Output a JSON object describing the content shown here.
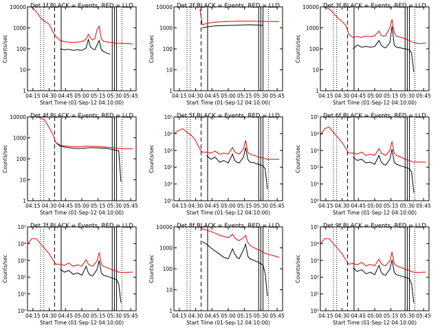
{
  "colors": {
    "events": "#000000",
    "lld": "#e00000",
    "frame": "#000000"
  },
  "shared": {
    "xlabel": "Start Time (01-Sep-12 04:10:00)",
    "ylabel": "Counts/sec",
    "x_ticks": [
      "04:15",
      "04:30",
      "04:45",
      "05:00",
      "05:15",
      "05:30",
      "05:45"
    ],
    "x_tick_minutes": [
      5,
      20,
      35,
      50,
      65,
      80,
      95
    ],
    "xlim_minutes": [
      0,
      100
    ],
    "markers": [
      {
        "minute": 12,
        "style": "dotted"
      },
      {
        "minute": 15,
        "style": "dotted"
      },
      {
        "minute": 25,
        "style": "dashed"
      },
      {
        "minute": 31,
        "style": "solid"
      },
      {
        "minute": 78,
        "style": "solid"
      },
      {
        "minute": 80,
        "style": "solid"
      },
      {
        "minute": 82,
        "style": "solid"
      },
      {
        "minute": 87,
        "style": "dotted"
      }
    ]
  },
  "chart_data": [
    {
      "type": "line",
      "title": "Det 1f BLACK = Events, RED = LLD",
      "y_ticks": [
        "1",
        "10",
        "100",
        "1000",
        "10000"
      ],
      "ylim": [
        1,
        10000
      ],
      "x_minutes": [
        0,
        4,
        8,
        12,
        16,
        20,
        23,
        26,
        30,
        34,
        38,
        42,
        46,
        50,
        52,
        54,
        56,
        58,
        60,
        62,
        64,
        66,
        68,
        70,
        72,
        74,
        76,
        78,
        80,
        82,
        86,
        90,
        94,
        97
      ],
      "series": [
        {
          "name": "BLACK = Events",
          "values": [
            null,
            null,
            null,
            null,
            null,
            null,
            null,
            null,
            100,
            90,
            95,
            85,
            90,
            85,
            95,
            110,
            280,
            120,
            100,
            90,
            150,
            250,
            90,
            75,
            65,
            60,
            55,
            null,
            null,
            null,
            null,
            null,
            null,
            null
          ]
        },
        {
          "name": "RED = LLD",
          "values": [
            10000,
            10000,
            6000,
            3000,
            2000,
            1500,
            700,
            400,
            250,
            220,
            210,
            200,
            210,
            220,
            250,
            300,
            500,
            320,
            260,
            300,
            800,
            1200,
            300,
            230,
            220,
            210,
            200,
            200,
            190,
            180,
            185,
            180,
            175,
            170
          ]
        }
      ]
    },
    {
      "type": "line",
      "title": "Det 2f BLACK = Events, RED = LLD",
      "y_ticks": [
        "1",
        "10",
        "100",
        "1000",
        "10000"
      ],
      "ylim": [
        1,
        10000
      ],
      "x_minutes": [
        0,
        20,
        22,
        24,
        26,
        30,
        35,
        40,
        50,
        60,
        70,
        78,
        82,
        90,
        97
      ],
      "series": [
        {
          "name": "BLACK = Events",
          "values": [
            null,
            null,
            null,
            null,
            1000,
            1100,
            1200,
            1250,
            1300,
            1350,
            1400,
            1350,
            1300,
            null,
            null
          ]
        },
        {
          "name": "RED = LLD",
          "values": [
            null,
            null,
            null,
            8000,
            1400,
            1600,
            1800,
            1900,
            2000,
            2100,
            2100,
            2050,
            2000,
            2000,
            2000
          ]
        }
      ]
    },
    {
      "type": "line",
      "title": "Det 3f BLACK = Events, RED = LLD",
      "y_ticks": [
        "1",
        "10",
        "100",
        "1000",
        "10000"
      ],
      "ylim": [
        1,
        10000
      ],
      "x_minutes": [
        0,
        4,
        8,
        12,
        16,
        20,
        24,
        26,
        30,
        34,
        38,
        42,
        46,
        50,
        54,
        56,
        58,
        60,
        64,
        66,
        68,
        70,
        74,
        78,
        82,
        84,
        86,
        90,
        94,
        97
      ],
      "series": [
        {
          "name": "BLACK = Events",
          "values": [
            null,
            null,
            null,
            null,
            null,
            null,
            null,
            null,
            100,
            150,
            120,
            130,
            120,
            130,
            250,
            150,
            120,
            110,
            200,
            1200,
            150,
            120,
            110,
            100,
            90,
            60,
            8,
            null,
            null,
            null
          ]
        },
        {
          "name": "RED = LLD",
          "values": [
            10000,
            10000,
            8000,
            5000,
            3000,
            2000,
            1200,
            500,
            350,
            380,
            350,
            400,
            380,
            420,
            700,
            450,
            400,
            420,
            1000,
            2500,
            600,
            400,
            350,
            300,
            250,
            220,
            200,
            180,
            180,
            190
          ]
        }
      ]
    },
    {
      "type": "line",
      "title": "Det 4f BLACK = Events, RED = LLD",
      "y_ticks": [
        "1",
        "10",
        "100",
        "1000",
        "10000"
      ],
      "ylim": [
        1,
        10000
      ],
      "x_minutes": [
        0,
        4,
        8,
        12,
        16,
        20,
        22,
        24,
        26,
        30,
        36,
        42,
        48,
        54,
        60,
        66,
        72,
        78,
        82,
        84,
        86,
        90,
        97
      ],
      "series": [
        {
          "name": "BLACK = Events",
          "values": [
            null,
            null,
            null,
            null,
            null,
            null,
            null,
            null,
            600,
            400,
            350,
            320,
            310,
            330,
            340,
            330,
            320,
            280,
            250,
            250,
            8,
            null,
            null
          ]
        },
        {
          "name": "RED = LLD",
          "values": [
            10000,
            10000,
            10000,
            9000,
            7000,
            3000,
            2000,
            1200,
            600,
            450,
            400,
            380,
            380,
            400,
            400,
            380,
            360,
            340,
            320,
            320,
            310,
            300,
            300
          ]
        }
      ]
    },
    {
      "type": "line",
      "title": "Det 5f BLACK = Events, RED = LLD",
      "y_ticks": [
        "10⁰",
        "10¹",
        "10²",
        "10³",
        "10⁴",
        "10⁵"
      ],
      "ylim": [
        1,
        100000
      ],
      "x_minutes": [
        0,
        4,
        8,
        12,
        16,
        20,
        23,
        26,
        30,
        34,
        38,
        42,
        46,
        50,
        54,
        56,
        58,
        60,
        64,
        66,
        68,
        70,
        74,
        78,
        82,
        84,
        86,
        90,
        97
      ],
      "series": [
        {
          "name": "BLACK = Events",
          "values": [
            null,
            null,
            null,
            null,
            null,
            null,
            null,
            null,
            500,
            300,
            400,
            200,
            250,
            180,
            600,
            250,
            200,
            180,
            400,
            1500,
            300,
            200,
            180,
            150,
            120,
            80,
            5,
            null,
            null
          ]
        },
        {
          "name": "RED = LLD",
          "values": [
            10000,
            15000,
            20000,
            12000,
            8000,
            4000,
            1500,
            800,
            800,
            700,
            900,
            600,
            700,
            600,
            1500,
            800,
            700,
            600,
            1200,
            4000,
            800,
            600,
            500,
            400,
            350,
            320,
            300,
            300,
            300
          ]
        }
      ]
    },
    {
      "type": "line",
      "title": "Det 6f BLACK = Events, RED = LLD",
      "y_ticks": [
        "10⁰",
        "10¹",
        "10²",
        "10³",
        "10⁴",
        "10⁵"
      ],
      "ylim": [
        1,
        100000
      ],
      "x_minutes": [
        0,
        4,
        8,
        12,
        16,
        20,
        23,
        26,
        30,
        34,
        38,
        42,
        46,
        50,
        54,
        56,
        58,
        60,
        64,
        66,
        68,
        70,
        74,
        78,
        82,
        84,
        86,
        90,
        97
      ],
      "series": [
        {
          "name": "BLACK = Events",
          "values": [
            null,
            null,
            null,
            null,
            null,
            null,
            null,
            null,
            400,
            250,
            300,
            180,
            200,
            150,
            500,
            200,
            150,
            130,
            300,
            1200,
            200,
            150,
            120,
            100,
            80,
            50,
            3,
            null,
            null
          ]
        },
        {
          "name": "RED = LLD",
          "values": [
            8000,
            20000,
            25000,
            12000,
            6000,
            3000,
            1500,
            700,
            700,
            600,
            800,
            500,
            600,
            500,
            1300,
            700,
            600,
            500,
            1000,
            3500,
            700,
            500,
            400,
            300,
            250,
            220,
            200,
            200,
            200
          ]
        }
      ]
    },
    {
      "type": "line",
      "title": "Det 7f BLACK = Events, RED = LLD",
      "y_ticks": [
        "10⁰",
        "10¹",
        "10²",
        "10³",
        "10⁴",
        "10⁵"
      ],
      "ylim": [
        1,
        100000
      ],
      "x_minutes": [
        0,
        4,
        8,
        12,
        16,
        20,
        23,
        26,
        30,
        34,
        38,
        42,
        46,
        50,
        54,
        56,
        58,
        60,
        64,
        66,
        68,
        70,
        74,
        78,
        82,
        84,
        86,
        90,
        97
      ],
      "series": [
        {
          "name": "BLACK = Events",
          "values": [
            null,
            null,
            null,
            null,
            null,
            null,
            null,
            null,
            300,
            200,
            250,
            150,
            180,
            130,
            450,
            180,
            130,
            120,
            280,
            1000,
            180,
            130,
            110,
            90,
            70,
            40,
            3,
            null,
            null
          ]
        },
        {
          "name": "RED = LLD",
          "values": [
            10000,
            20000,
            20000,
            10000,
            5000,
            2500,
            1200,
            600,
            600,
            500,
            700,
            450,
            550,
            450,
            1100,
            600,
            500,
            450,
            900,
            3000,
            600,
            450,
            350,
            280,
            230,
            200,
            190,
            190,
            200
          ]
        }
      ]
    },
    {
      "type": "line",
      "title": "Det 8f BLACK = Events, RED = LLD",
      "y_ticks": [
        "1",
        "10",
        "100",
        "1000",
        "10000"
      ],
      "ylim": [
        1,
        10000
      ],
      "x_minutes": [
        0,
        20,
        24,
        26,
        30,
        34,
        38,
        42,
        46,
        50,
        54,
        56,
        58,
        60,
        64,
        66,
        68,
        70,
        74,
        78,
        82,
        84,
        86,
        90,
        97
      ],
      "series": [
        {
          "name": "BLACK = Events",
          "values": [
            null,
            null,
            null,
            2000,
            1500,
            1000,
            700,
            500,
            350,
            300,
            900,
            500,
            350,
            300,
            800,
            1500,
            400,
            300,
            250,
            200,
            150,
            60,
            5,
            null,
            null
          ]
        },
        {
          "name": "RED = LLD",
          "values": [
            null,
            null,
            10000,
            8000,
            7000,
            6000,
            5000,
            4000,
            3500,
            3000,
            4500,
            3000,
            2500,
            2200,
            3000,
            4000,
            1800,
            1300,
            1000,
            800,
            650,
            550,
            500,
            450,
            350
          ]
        }
      ]
    },
    {
      "type": "line",
      "title": "Det 9f BLACK = Events, RED = LLD",
      "y_ticks": [
        "10⁰",
        "10¹",
        "10²",
        "10³",
        "10⁴",
        "10⁵"
      ],
      "ylim": [
        1,
        100000
      ],
      "x_minutes": [
        0,
        4,
        8,
        12,
        16,
        20,
        23,
        26,
        30,
        34,
        38,
        42,
        46,
        50,
        54,
        56,
        58,
        60,
        64,
        66,
        68,
        70,
        74,
        78,
        82,
        84,
        86,
        90,
        97
      ],
      "series": [
        {
          "name": "BLACK = Events",
          "values": [
            null,
            null,
            null,
            null,
            null,
            null,
            null,
            null,
            350,
            220,
            280,
            160,
            200,
            140,
            500,
            200,
            140,
            130,
            300,
            1100,
            200,
            140,
            120,
            100,
            80,
            40,
            3,
            null,
            null
          ]
        },
        {
          "name": "RED = LLD",
          "values": [
            10000,
            20000,
            20000,
            10000,
            5000,
            2500,
            1200,
            600,
            650,
            550,
            750,
            480,
            580,
            480,
            1200,
            650,
            520,
            480,
            950,
            3200,
            650,
            480,
            380,
            300,
            250,
            210,
            200,
            190,
            200
          ]
        }
      ]
    }
  ]
}
